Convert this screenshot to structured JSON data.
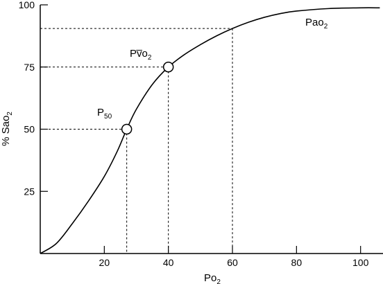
{
  "chart_data": {
    "type": "line",
    "xlabel": "Po",
    "xlabel_subscript": "2",
    "ylabel": "% Sao",
    "ylabel_subscript": "2",
    "x_ticks": [
      20,
      40,
      60,
      80,
      100
    ],
    "y_ticks": [
      25,
      50,
      75,
      100
    ],
    "xlim": [
      0,
      107
    ],
    "ylim": [
      0,
      100
    ],
    "grid": false,
    "series": [
      {
        "values": [
          {
            "x": 0,
            "y": 0
          },
          {
            "x": 5,
            "y": 4
          },
          {
            "x": 10,
            "y": 12
          },
          {
            "x": 15,
            "y": 21
          },
          {
            "x": 20,
            "y": 31
          },
          {
            "x": 24,
            "y": 41
          },
          {
            "x": 27,
            "y": 50
          },
          {
            "x": 30,
            "y": 58
          },
          {
            "x": 35,
            "y": 68
          },
          {
            "x": 40,
            "y": 75
          },
          {
            "x": 45,
            "y": 80
          },
          {
            "x": 50,
            "y": 84
          },
          {
            "x": 55,
            "y": 87.5
          },
          {
            "x": 60,
            "y": 90.5
          },
          {
            "x": 65,
            "y": 93
          },
          {
            "x": 70,
            "y": 95
          },
          {
            "x": 75,
            "y": 96.5
          },
          {
            "x": 80,
            "y": 97.5
          },
          {
            "x": 90,
            "y": 98.5
          },
          {
            "x": 100,
            "y": 98.8
          },
          {
            "x": 106,
            "y": 98.8
          }
        ]
      }
    ],
    "annotations": [
      {
        "text": "P",
        "subscript": "50",
        "x": 27,
        "y": 50,
        "marker": true,
        "guides": true
      },
      {
        "text": "Pv̅o",
        "subscript": "2",
        "x": 40,
        "y": 75,
        "marker": true,
        "guides": true
      },
      {
        "text": "Pao",
        "subscript": "2",
        "x": 60,
        "y": 90.5,
        "marker": false,
        "guides": true
      }
    ]
  }
}
